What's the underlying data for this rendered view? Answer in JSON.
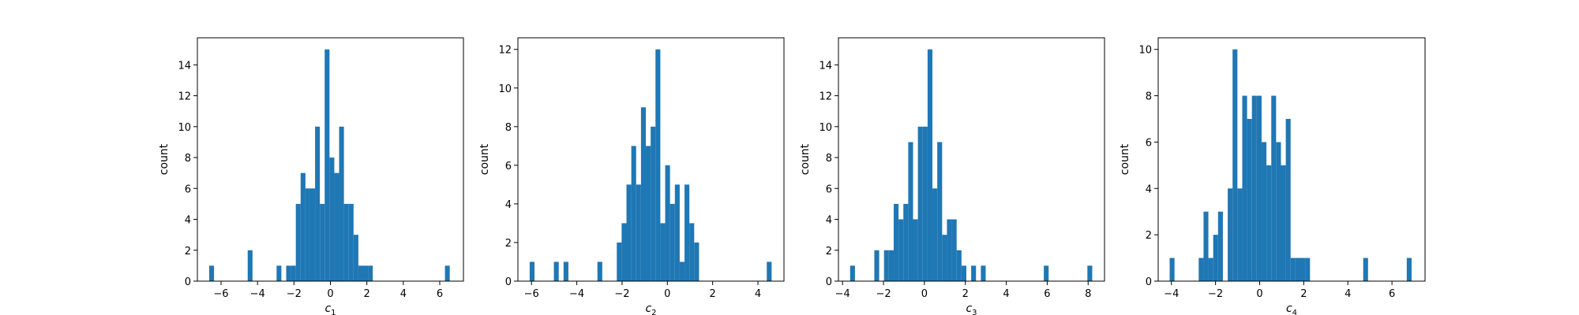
{
  "chart_data": [
    {
      "type": "bar",
      "ylabel": "count",
      "xlabel_base": "c",
      "xlabel_sub": "1",
      "xlim": [
        -7.3,
        7.3
      ],
      "ylim": [
        0,
        15.75
      ],
      "xticks": [
        -6,
        -4,
        -2,
        0,
        2,
        4,
        6
      ],
      "yticks": [
        0,
        2,
        4,
        6,
        8,
        10,
        12,
        14
      ],
      "color": "#1f77b4",
      "bin_start": -6.65,
      "bin_width": 0.264,
      "counts": [
        1,
        0,
        0,
        0,
        0,
        0,
        0,
        0,
        2,
        0,
        0,
        0,
        0,
        0,
        1,
        0,
        1,
        1,
        5,
        7,
        6,
        6,
        10,
        5,
        15,
        8,
        7,
        10,
        5,
        5,
        3,
        1,
        1,
        1,
        0,
        0,
        0,
        0,
        0,
        0,
        0,
        0,
        0,
        0,
        0,
        0,
        0,
        0,
        0,
        1
      ]
    },
    {
      "type": "bar",
      "ylabel": "count",
      "xlabel_base": "c",
      "xlabel_sub": "2",
      "xlim": [
        -6.6,
        5.15
      ],
      "ylim": [
        0,
        12.6
      ],
      "xticks": [
        -6,
        -4,
        -2,
        0,
        2,
        4
      ],
      "yticks": [
        0,
        2,
        4,
        6,
        8,
        10,
        12
      ],
      "color": "#1f77b4",
      "bin_start": -6.08,
      "bin_width": 0.2137,
      "counts": [
        1,
        0,
        0,
        0,
        0,
        1,
        0,
        1,
        0,
        0,
        0,
        0,
        0,
        0,
        1,
        0,
        0,
        0,
        2,
        3,
        5,
        7,
        5,
        9,
        7,
        8,
        12,
        3,
        6,
        4,
        5,
        1,
        5,
        3,
        2,
        0,
        0,
        0,
        0,
        0,
        0,
        0,
        0,
        0,
        0,
        0,
        0,
        0,
        0,
        1
      ]
    },
    {
      "type": "bar",
      "ylabel": "count",
      "xlabel_base": "c",
      "xlabel_sub": "3",
      "xlim": [
        -4.2,
        8.8
      ],
      "ylim": [
        0,
        15.75
      ],
      "xticks": [
        -4,
        -2,
        0,
        2,
        4,
        6,
        8
      ],
      "yticks": [
        0,
        2,
        4,
        6,
        8,
        10,
        12,
        14
      ],
      "color": "#1f77b4",
      "bin_start": -3.63,
      "bin_width": 0.2366,
      "counts": [
        1,
        0,
        0,
        0,
        0,
        2,
        0,
        2,
        2,
        5,
        4,
        5,
        9,
        4,
        10,
        10,
        15,
        6,
        9,
        3,
        4,
        4,
        2,
        1,
        0,
        1,
        0,
        1,
        0,
        0,
        0,
        0,
        0,
        0,
        0,
        0,
        0,
        0,
        0,
        0,
        1,
        0,
        0,
        0,
        0,
        0,
        0,
        0,
        0,
        1
      ]
    },
    {
      "type": "bar",
      "ylabel": "count",
      "xlabel_base": "c",
      "xlabel_sub": "4",
      "xlim": [
        -4.6,
        7.5
      ],
      "ylim": [
        0,
        10.5
      ],
      "xticks": [
        -4,
        -2,
        0,
        2,
        4,
        6
      ],
      "yticks": [
        0,
        2,
        4,
        6,
        8,
        10
      ],
      "color": "#1f77b4",
      "bin_start": -4.08,
      "bin_width": 0.2194,
      "counts": [
        1,
        0,
        0,
        0,
        0,
        0,
        1,
        3,
        1,
        2,
        3,
        0,
        4,
        10,
        4,
        8,
        7,
        8,
        8,
        6,
        5,
        8,
        6,
        5,
        7,
        1,
        1,
        1,
        1,
        0,
        0,
        0,
        0,
        0,
        0,
        0,
        0,
        0,
        0,
        0,
        1,
        0,
        0,
        0,
        0,
        0,
        0,
        0,
        0,
        1
      ]
    }
  ]
}
